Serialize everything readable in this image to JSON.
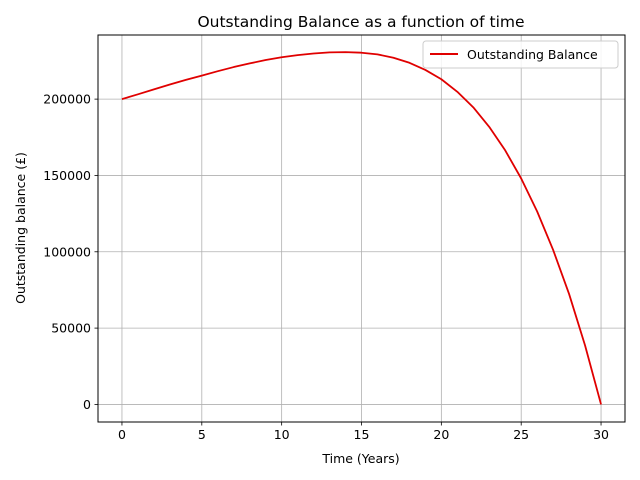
{
  "chart_data": {
    "type": "line",
    "title": "Outstanding Balance as a function of time",
    "xlabel": "Time (Years)",
    "ylabel": "Outstanding balance (£)",
    "xlim": [
      -1.5,
      31.5
    ],
    "ylim": [
      -11500,
      242000
    ],
    "xticks": [
      0,
      5,
      10,
      15,
      20,
      25,
      30
    ],
    "yticks": [
      0,
      50000,
      100000,
      150000,
      200000
    ],
    "grid": true,
    "legend_position": "top-right",
    "series": [
      {
        "name": "Outstanding Balance",
        "color": "#e00000",
        "x": [
          0,
          1,
          2,
          3,
          4,
          5,
          6,
          7,
          8,
          9,
          10,
          11,
          12,
          13,
          14,
          15,
          16,
          17,
          18,
          19,
          20,
          21,
          22,
          23,
          24,
          25,
          26,
          27,
          28,
          29,
          30
        ],
        "y": [
          200000,
          203150,
          206400,
          209600,
          212600,
          215400,
          218300,
          221000,
          223400,
          225600,
          227400,
          228800,
          229900,
          230600,
          230800,
          230400,
          229300,
          227100,
          223800,
          219100,
          213000,
          204800,
          194600,
          181800,
          166400,
          148000,
          126400,
          101200,
          72300,
          38600,
          0
        ]
      }
    ]
  }
}
